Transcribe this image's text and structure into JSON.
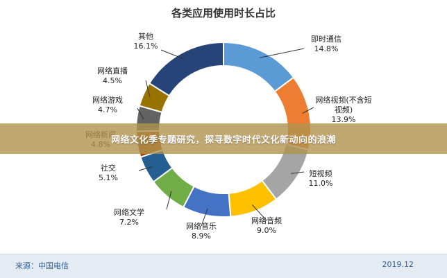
{
  "chart_data": {
    "type": "pie",
    "title": "各类应用使用时长占比",
    "slices": [
      {
        "label": "即时通信",
        "value": 14.8,
        "value_label": "14.8%",
        "color": "#5b9bd5"
      },
      {
        "label": "网络视频(不含短视频)",
        "label_lines": [
          "网络视频(不含短",
          "视频)"
        ],
        "value": 13.9,
        "value_label": "13.9%",
        "color": "#ed7d31"
      },
      {
        "label": "短视频",
        "value": 11.0,
        "value_label": "11.0%",
        "color": "#a5a5a5"
      },
      {
        "label": "网络音频",
        "value": 9.0,
        "value_label": "9.0%",
        "color": "#ffc000"
      },
      {
        "label": "网络音乐",
        "value": 8.9,
        "value_label": "8.9%",
        "color": "#4472c4"
      },
      {
        "label": "网络文学",
        "value": 7.2,
        "value_label": "7.2%",
        "color": "#70ad47"
      },
      {
        "label": "社交",
        "value": 5.1,
        "value_label": "5.1%",
        "color": "#255e91"
      },
      {
        "label": "网络新闻",
        "value": 4.8,
        "value_label": "4.8%",
        "color": "#9e480e"
      },
      {
        "label": "网络游戏",
        "value": 4.7,
        "value_label": "4.7%",
        "color": "#636363"
      },
      {
        "label": "网络直播",
        "value": 4.5,
        "value_label": "4.5%",
        "color": "#997300"
      },
      {
        "label": "其他",
        "value": 16.1,
        "value_label": "16.1%",
        "color": "#264478"
      }
    ]
  },
  "banner": {
    "text": "网络文化季专题研究，探寻数字时代文化新动向的浪潮"
  },
  "footer": {
    "source": "来源：中国电信",
    "date": "2019.12"
  }
}
